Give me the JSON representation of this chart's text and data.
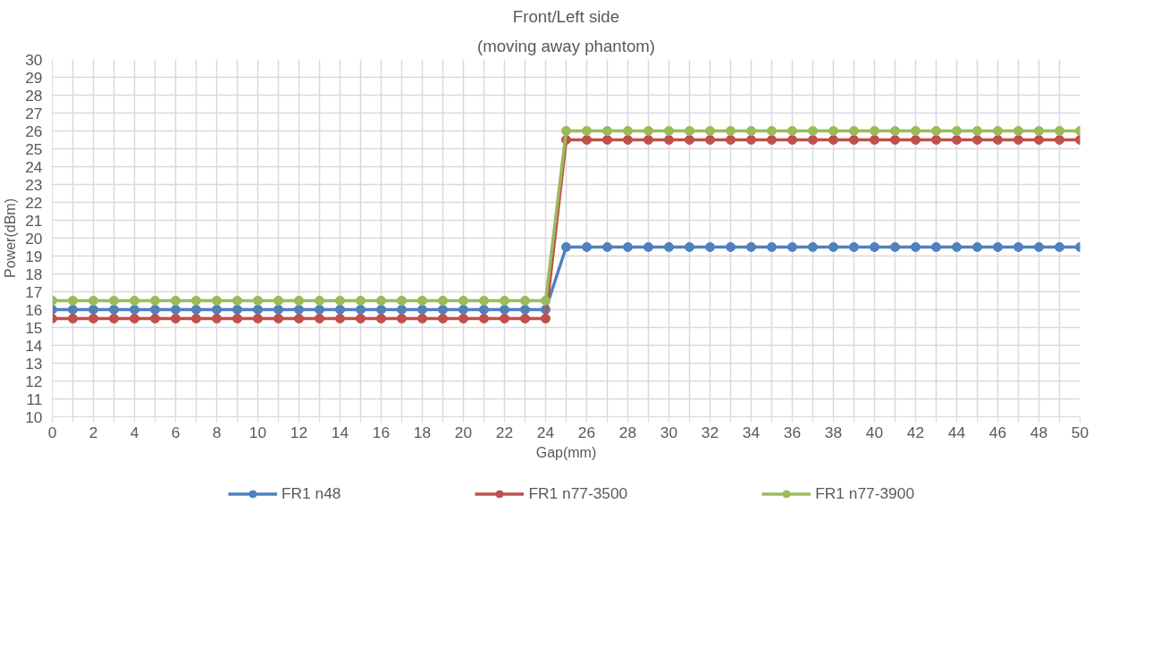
{
  "chart_data": {
    "type": "line",
    "title": "Front/Left side",
    "subtitle": "(moving away phantom)",
    "xlabel": "Gap(mm)",
    "ylabel": "Power(dBm)",
    "x": [
      0,
      1,
      2,
      3,
      4,
      5,
      6,
      7,
      8,
      9,
      10,
      11,
      12,
      13,
      14,
      15,
      16,
      17,
      18,
      19,
      20,
      21,
      22,
      23,
      24,
      25,
      26,
      27,
      28,
      29,
      30,
      31,
      32,
      33,
      34,
      35,
      36,
      37,
      38,
      39,
      40,
      41,
      42,
      43,
      44,
      45,
      46,
      47,
      48,
      49,
      50
    ],
    "series": [
      {
        "name": "FR1 n48",
        "color": "#4f81bd",
        "values": [
          16,
          16,
          16,
          16,
          16,
          16,
          16,
          16,
          16,
          16,
          16,
          16,
          16,
          16,
          16,
          16,
          16,
          16,
          16,
          16,
          16,
          16,
          16,
          16,
          16,
          19.5,
          19.5,
          19.5,
          19.5,
          19.5,
          19.5,
          19.5,
          19.5,
          19.5,
          19.5,
          19.5,
          19.5,
          19.5,
          19.5,
          19.5,
          19.5,
          19.5,
          19.5,
          19.5,
          19.5,
          19.5,
          19.5,
          19.5,
          19.5,
          19.5,
          19.5
        ]
      },
      {
        "name": "FR1 n77-3500",
        "color": "#c0504d",
        "values": [
          15.5,
          15.5,
          15.5,
          15.5,
          15.5,
          15.5,
          15.5,
          15.5,
          15.5,
          15.5,
          15.5,
          15.5,
          15.5,
          15.5,
          15.5,
          15.5,
          15.5,
          15.5,
          15.5,
          15.5,
          15.5,
          15.5,
          15.5,
          15.5,
          15.5,
          25.5,
          25.5,
          25.5,
          25.5,
          25.5,
          25.5,
          25.5,
          25.5,
          25.5,
          25.5,
          25.5,
          25.5,
          25.5,
          25.5,
          25.5,
          25.5,
          25.5,
          25.5,
          25.5,
          25.5,
          25.5,
          25.5,
          25.5,
          25.5,
          25.5,
          25.5
        ]
      },
      {
        "name": "FR1 n77-3900",
        "color": "#9bbb59",
        "values": [
          16.5,
          16.5,
          16.5,
          16.5,
          16.5,
          16.5,
          16.5,
          16.5,
          16.5,
          16.5,
          16.5,
          16.5,
          16.5,
          16.5,
          16.5,
          16.5,
          16.5,
          16.5,
          16.5,
          16.5,
          16.5,
          16.5,
          16.5,
          16.5,
          16.5,
          26,
          26,
          26,
          26,
          26,
          26,
          26,
          26,
          26,
          26,
          26,
          26,
          26,
          26,
          26,
          26,
          26,
          26,
          26,
          26,
          26,
          26,
          26,
          26,
          26,
          26
        ]
      }
    ],
    "xlim": [
      0,
      50
    ],
    "xticks": [
      0,
      {
        "value": 1,
        "label": null
      },
      2,
      {
        "value": 3,
        "label": null
      },
      4,
      {
        "value": 5,
        "label": null
      },
      6,
      {
        "value": 7,
        "label": null
      },
      8,
      {
        "value": 9,
        "label": null
      },
      10,
      {
        "value": 11,
        "label": null
      },
      12,
      {
        "value": 13,
        "label": null
      },
      14,
      {
        "value": 15,
        "label": null
      },
      16,
      {
        "value": 17,
        "label": null
      },
      18,
      {
        "value": 19,
        "label": null
      },
      20,
      {
        "value": 21,
        "label": null
      },
      22,
      {
        "value": 23,
        "label": null
      },
      24,
      {
        "value": 25,
        "label": null
      },
      26,
      {
        "value": 27,
        "label": null
      },
      28,
      {
        "value": 29,
        "label": null
      },
      30,
      {
        "value": 31,
        "label": null
      },
      32,
      {
        "value": 33,
        "label": null
      },
      34,
      {
        "value": 35,
        "label": null
      },
      36,
      {
        "value": 37,
        "label": null
      },
      38,
      {
        "value": 39,
        "label": null
      },
      40,
      {
        "value": 41,
        "label": null
      },
      42,
      {
        "value": 43,
        "label": null
      },
      44,
      {
        "value": 45,
        "label": null
      },
      46,
      {
        "value": 47,
        "label": null
      },
      48,
      {
        "value": 49,
        "label": null
      },
      50
    ],
    "ylim": [
      10,
      30
    ],
    "yticks": [
      10,
      11,
      12,
      13,
      14,
      15,
      16,
      17,
      18,
      19,
      20,
      21,
      22,
      23,
      24,
      25,
      26,
      27,
      28,
      29,
      30
    ],
    "grid": true,
    "legend": "bottom",
    "marker": "circle",
    "line_style": "solid"
  }
}
